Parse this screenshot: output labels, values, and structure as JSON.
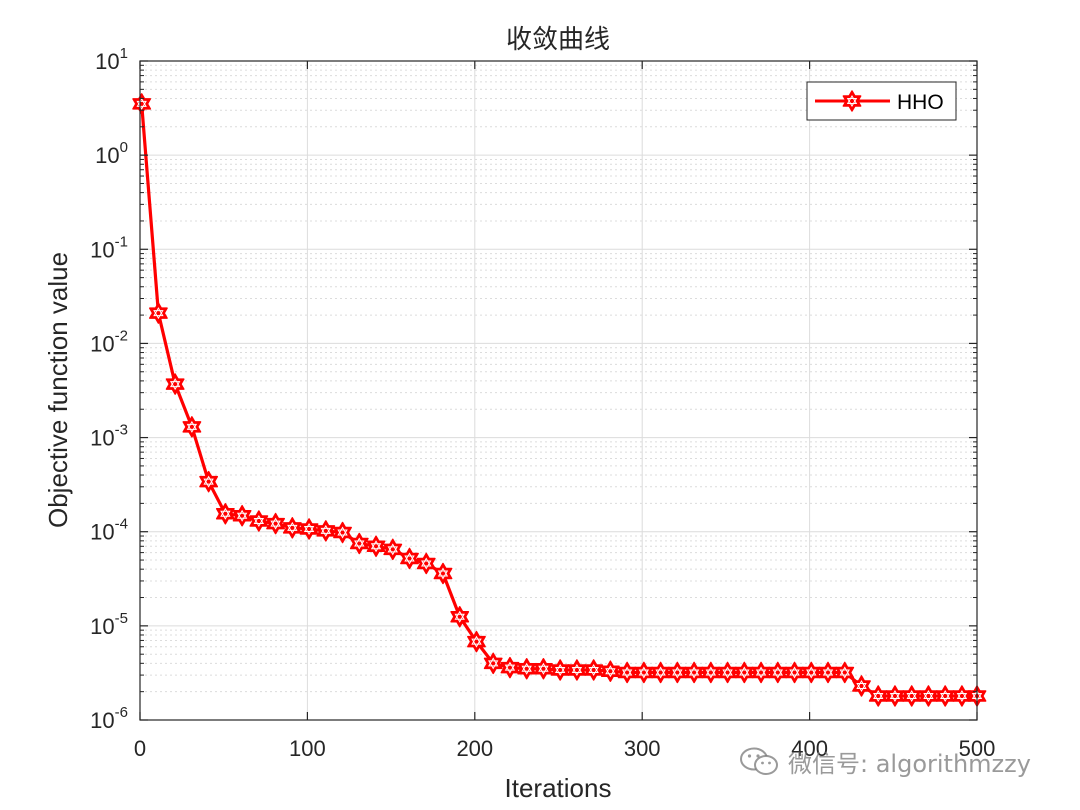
{
  "chart_data": {
    "type": "line",
    "title": "收敛曲线",
    "xlabel": "Iterations",
    "ylabel": "Objective function value",
    "yscale": "log",
    "xlim": [
      0,
      500
    ],
    "ylim": [
      1e-06,
      10
    ],
    "xticks": [
      0,
      100,
      200,
      300,
      400,
      500
    ],
    "yticks": [
      {
        "base": "10",
        "exp": "1"
      },
      {
        "base": "10",
        "exp": "0"
      },
      {
        "base": "10",
        "exp": "-1"
      },
      {
        "base": "10",
        "exp": "-2"
      },
      {
        "base": "10",
        "exp": "-3"
      },
      {
        "base": "10",
        "exp": "-4"
      },
      {
        "base": "10",
        "exp": "-5"
      },
      {
        "base": "10",
        "exp": "-6"
      }
    ],
    "grid": true,
    "legend_position": "top-right",
    "series": [
      {
        "name": "HHO",
        "color": "#ff0000",
        "marker": "hexagram",
        "x": [
          1,
          11,
          21,
          31,
          41,
          51,
          61,
          71,
          81,
          91,
          101,
          111,
          121,
          131,
          141,
          151,
          161,
          171,
          181,
          191,
          201,
          211,
          221,
          231,
          241,
          251,
          261,
          271,
          281,
          291,
          301,
          311,
          321,
          331,
          341,
          351,
          361,
          371,
          381,
          391,
          401,
          411,
          421,
          431,
          441,
          451,
          461,
          471,
          481,
          491,
          500
        ],
        "y": [
          3.5,
          0.021,
          0.0037,
          0.0013,
          0.00034,
          0.000155,
          0.000148,
          0.00013,
          0.000122,
          0.00011,
          0.000107,
          0.000102,
          9.8e-05,
          7.5e-05,
          7e-05,
          6.5e-05,
          5.2e-05,
          4.6e-05,
          3.6e-05,
          1.25e-05,
          6.8e-06,
          4e-06,
          3.6e-06,
          3.5e-06,
          3.5e-06,
          3.4e-06,
          3.4e-06,
          3.4e-06,
          3.3e-06,
          3.2e-06,
          3.2e-06,
          3.2e-06,
          3.2e-06,
          3.2e-06,
          3.2e-06,
          3.2e-06,
          3.2e-06,
          3.2e-06,
          3.2e-06,
          3.2e-06,
          3.2e-06,
          3.2e-06,
          3.2e-06,
          2.3e-06,
          1.8e-06,
          1.8e-06,
          1.8e-06,
          1.8e-06,
          1.8e-06,
          1.8e-06,
          1.8e-06
        ]
      }
    ]
  },
  "watermark": {
    "text": "微信号: algorithmzzy",
    "icon": "wechat-icon"
  }
}
